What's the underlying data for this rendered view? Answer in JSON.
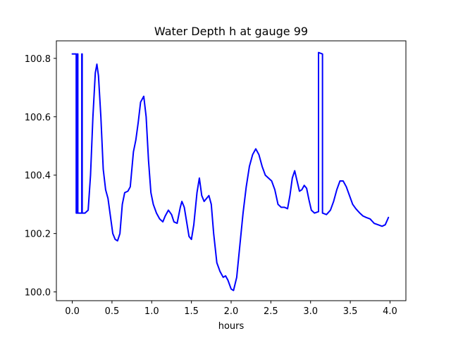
{
  "chart_data": {
    "type": "line",
    "title": "Water Depth h at gauge 99",
    "xlabel": "hours",
    "ylabel": "",
    "xlim": [
      -0.2,
      4.2
    ],
    "ylim": [
      99.97,
      100.86
    ],
    "xticks": [
      0.0,
      0.5,
      1.0,
      1.5,
      2.0,
      2.5,
      3.0,
      3.5,
      4.0
    ],
    "xtick_labels": [
      "0.0",
      "0.5",
      "1.0",
      "1.5",
      "2.0",
      "2.5",
      "3.0",
      "3.5",
      "4.0"
    ],
    "yticks": [
      100.0,
      100.2,
      100.4,
      100.6,
      100.8
    ],
    "ytick_labels": [
      "100.0",
      "100.2",
      "100.4",
      "100.6",
      "100.8"
    ],
    "grid": false,
    "legend": "none",
    "series": [
      {
        "color": "#0000ff",
        "points": [
          [
            0.0,
            100.815
          ],
          [
            0.05,
            100.815
          ],
          [
            0.05,
            100.27
          ],
          [
            0.065,
            100.27
          ],
          [
            0.065,
            100.815
          ],
          [
            0.07,
            100.815
          ],
          [
            0.07,
            100.27
          ],
          [
            0.12,
            100.27
          ],
          [
            0.12,
            100.815
          ],
          [
            0.125,
            100.815
          ],
          [
            0.125,
            100.27
          ],
          [
            0.16,
            100.27
          ],
          [
            0.2,
            100.28
          ],
          [
            0.23,
            100.4
          ],
          [
            0.26,
            100.6
          ],
          [
            0.29,
            100.75
          ],
          [
            0.31,
            100.78
          ],
          [
            0.33,
            100.74
          ],
          [
            0.36,
            100.6
          ],
          [
            0.39,
            100.42
          ],
          [
            0.42,
            100.35
          ],
          [
            0.45,
            100.32
          ],
          [
            0.48,
            100.26
          ],
          [
            0.51,
            100.2
          ],
          [
            0.54,
            100.18
          ],
          [
            0.57,
            100.175
          ],
          [
            0.6,
            100.2
          ],
          [
            0.63,
            100.3
          ],
          [
            0.66,
            100.34
          ],
          [
            0.7,
            100.345
          ],
          [
            0.73,
            100.36
          ],
          [
            0.77,
            100.48
          ],
          [
            0.8,
            100.52
          ],
          [
            0.83,
            100.58
          ],
          [
            0.86,
            100.65
          ],
          [
            0.9,
            100.67
          ],
          [
            0.93,
            100.6
          ],
          [
            0.96,
            100.45
          ],
          [
            0.99,
            100.34
          ],
          [
            1.02,
            100.3
          ],
          [
            1.06,
            100.27
          ],
          [
            1.1,
            100.25
          ],
          [
            1.14,
            100.24
          ],
          [
            1.17,
            100.26
          ],
          [
            1.21,
            100.28
          ],
          [
            1.25,
            100.265
          ],
          [
            1.28,
            100.24
          ],
          [
            1.32,
            100.235
          ],
          [
            1.36,
            100.29
          ],
          [
            1.38,
            100.31
          ],
          [
            1.41,
            100.29
          ],
          [
            1.44,
            100.24
          ],
          [
            1.47,
            100.19
          ],
          [
            1.5,
            100.18
          ],
          [
            1.53,
            100.23
          ],
          [
            1.57,
            100.34
          ],
          [
            1.6,
            100.39
          ],
          [
            1.63,
            100.33
          ],
          [
            1.66,
            100.31
          ],
          [
            1.69,
            100.32
          ],
          [
            1.72,
            100.33
          ],
          [
            1.75,
            100.3
          ],
          [
            1.78,
            100.2
          ],
          [
            1.82,
            100.1
          ],
          [
            1.86,
            100.07
          ],
          [
            1.9,
            100.05
          ],
          [
            1.93,
            100.055
          ],
          [
            1.96,
            100.04
          ],
          [
            2.0,
            100.01
          ],
          [
            2.03,
            100.005
          ],
          [
            2.07,
            100.05
          ],
          [
            2.11,
            100.16
          ],
          [
            2.15,
            100.27
          ],
          [
            2.19,
            100.36
          ],
          [
            2.23,
            100.43
          ],
          [
            2.27,
            100.47
          ],
          [
            2.31,
            100.49
          ],
          [
            2.35,
            100.47
          ],
          [
            2.39,
            100.43
          ],
          [
            2.43,
            100.4
          ],
          [
            2.47,
            100.39
          ],
          [
            2.51,
            100.38
          ],
          [
            2.55,
            100.35
          ],
          [
            2.59,
            100.3
          ],
          [
            2.63,
            100.29
          ],
          [
            2.67,
            100.29
          ],
          [
            2.71,
            100.285
          ],
          [
            2.74,
            100.33
          ],
          [
            2.77,
            100.39
          ],
          [
            2.8,
            100.415
          ],
          [
            2.83,
            100.38
          ],
          [
            2.86,
            100.345
          ],
          [
            2.89,
            100.35
          ],
          [
            2.92,
            100.365
          ],
          [
            2.95,
            100.355
          ],
          [
            2.98,
            100.315
          ],
          [
            3.01,
            100.28
          ],
          [
            3.05,
            100.27
          ],
          [
            3.1,
            100.275
          ],
          [
            3.1,
            100.82
          ],
          [
            3.15,
            100.815
          ],
          [
            3.15,
            100.27
          ],
          [
            3.2,
            100.265
          ],
          [
            3.25,
            100.28
          ],
          [
            3.29,
            100.31
          ],
          [
            3.33,
            100.35
          ],
          [
            3.37,
            100.38
          ],
          [
            3.41,
            100.38
          ],
          [
            3.45,
            100.36
          ],
          [
            3.49,
            100.33
          ],
          [
            3.53,
            100.3
          ],
          [
            3.57,
            100.285
          ],
          [
            3.62,
            100.27
          ],
          [
            3.66,
            100.26
          ],
          [
            3.7,
            100.255
          ],
          [
            3.75,
            100.25
          ],
          [
            3.8,
            100.235
          ],
          [
            3.85,
            100.23
          ],
          [
            3.9,
            100.225
          ],
          [
            3.94,
            100.23
          ],
          [
            3.98,
            100.255
          ]
        ]
      }
    ]
  }
}
